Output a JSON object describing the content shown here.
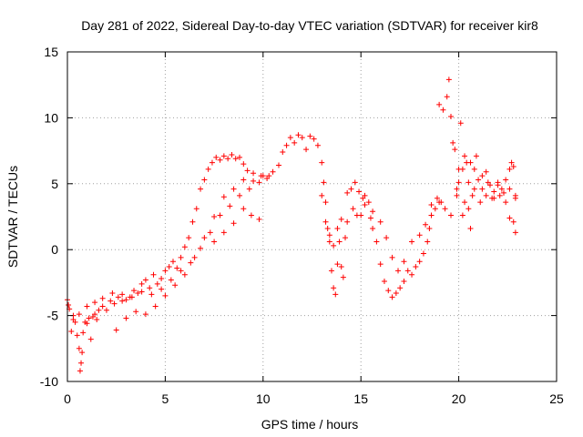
{
  "chart_data": {
    "type": "scatter",
    "title": "Day 281 of 2022, Sidereal Day-to-day VTEC variation (SDTVAR) for receiver kir8",
    "xlabel": "GPS time / hours",
    "ylabel": "SDTVAR / TECUs",
    "xlim": [
      0,
      25
    ],
    "ylim": [
      -10,
      15
    ],
    "xticks": [
      "0",
      "5",
      "10",
      "15",
      "20",
      "25"
    ],
    "yticks": [
      "-10",
      "-5",
      "0",
      "5",
      "10",
      "15"
    ],
    "grid": true,
    "marker": "plus",
    "color": "#ff0000",
    "series": [
      {
        "name": "SDTVAR",
        "points": [
          [
            0.0,
            -3.8
          ],
          [
            0.1,
            -4.5
          ],
          [
            0.2,
            -6.2
          ],
          [
            0.3,
            -5.0
          ],
          [
            0.4,
            -5.5
          ],
          [
            0.5,
            -6.5
          ],
          [
            0.6,
            -7.5
          ],
          [
            0.65,
            -9.2
          ],
          [
            0.7,
            -8.6
          ],
          [
            0.75,
            -7.8
          ],
          [
            0.8,
            -6.3
          ],
          [
            0.9,
            -5.5
          ],
          [
            1.0,
            -5.6
          ],
          [
            1.1,
            -5.2
          ],
          [
            1.2,
            -6.8
          ],
          [
            1.3,
            -5.1
          ],
          [
            1.4,
            -4.9
          ],
          [
            1.5,
            -5.3
          ],
          [
            1.6,
            -4.6
          ],
          [
            1.8,
            -4.3
          ],
          [
            2.0,
            -4.6
          ],
          [
            2.2,
            -3.9
          ],
          [
            2.4,
            -4.1
          ],
          [
            2.6,
            -3.6
          ],
          [
            2.8,
            -3.9
          ],
          [
            3.0,
            -3.8
          ],
          [
            3.2,
            -3.6
          ],
          [
            3.4,
            -3.1
          ],
          [
            3.6,
            -3.3
          ],
          [
            3.8,
            -2.6
          ],
          [
            4.0,
            -2.3
          ],
          [
            4.2,
            -2.9
          ],
          [
            4.4,
            -1.9
          ],
          [
            4.6,
            -2.6
          ],
          [
            4.8,
            -2.2
          ],
          [
            5.0,
            -1.6
          ],
          [
            5.2,
            -1.3
          ],
          [
            5.4,
            -0.9
          ],
          [
            5.6,
            -1.4
          ],
          [
            5.8,
            -0.6
          ],
          [
            6.0,
            0.2
          ],
          [
            6.2,
            0.9
          ],
          [
            6.4,
            2.1
          ],
          [
            6.6,
            3.1
          ],
          [
            6.8,
            4.6
          ],
          [
            7.0,
            5.3
          ],
          [
            7.2,
            6.1
          ],
          [
            7.4,
            6.6
          ],
          [
            7.6,
            7.0
          ],
          [
            7.8,
            6.8
          ],
          [
            8.0,
            7.1
          ],
          [
            8.2,
            6.9
          ],
          [
            8.4,
            7.2
          ],
          [
            8.6,
            6.9
          ],
          [
            8.8,
            7.0
          ],
          [
            9.0,
            6.5
          ],
          [
            9.2,
            6.0
          ],
          [
            0.05,
            -4.2
          ],
          [
            0.3,
            -5.3
          ],
          [
            0.6,
            -4.9
          ],
          [
            1.0,
            -4.3
          ],
          [
            1.4,
            -4.0
          ],
          [
            1.8,
            -3.7
          ],
          [
            2.3,
            -3.3
          ],
          [
            2.8,
            -3.4
          ],
          [
            3.3,
            -3.6
          ],
          [
            3.8,
            -3.2
          ],
          [
            4.3,
            -3.4
          ],
          [
            4.8,
            -3.0
          ],
          [
            5.3,
            -2.3
          ],
          [
            5.8,
            -1.6
          ],
          [
            6.3,
            -1.0
          ],
          [
            6.8,
            0.1
          ],
          [
            7.3,
            1.3
          ],
          [
            7.8,
            2.6
          ],
          [
            8.3,
            3.3
          ],
          [
            8.8,
            4.1
          ],
          [
            9.3,
            4.6
          ],
          [
            9.8,
            5.1
          ],
          [
            10.3,
            5.6
          ],
          [
            2.5,
            -6.1
          ],
          [
            3.0,
            -5.2
          ],
          [
            3.5,
            -4.7
          ],
          [
            4.0,
            -4.9
          ],
          [
            4.5,
            -4.3
          ],
          [
            5.0,
            -3.5
          ],
          [
            5.5,
            -2.7
          ],
          [
            6.0,
            -1.9
          ],
          [
            6.5,
            -0.6
          ],
          [
            7.0,
            0.9
          ],
          [
            7.5,
            2.5
          ],
          [
            8.0,
            4.0
          ],
          [
            8.5,
            4.6
          ],
          [
            9.0,
            5.3
          ],
          [
            9.5,
            5.8
          ],
          [
            10.0,
            5.6
          ],
          [
            7.5,
            0.6
          ],
          [
            8.0,
            1.3
          ],
          [
            8.5,
            2.0
          ],
          [
            9.0,
            3.1
          ],
          [
            9.4,
            2.6
          ],
          [
            9.8,
            2.3
          ],
          [
            9.5,
            5.2
          ],
          [
            9.9,
            5.6
          ],
          [
            10.2,
            5.4
          ],
          [
            10.5,
            5.9
          ],
          [
            10.8,
            6.4
          ],
          [
            11.0,
            7.4
          ],
          [
            11.2,
            7.9
          ],
          [
            11.4,
            8.5
          ],
          [
            11.6,
            8.1
          ],
          [
            11.8,
            8.7
          ],
          [
            12.0,
            8.5
          ],
          [
            12.2,
            7.6
          ],
          [
            12.4,
            8.6
          ],
          [
            12.6,
            8.4
          ],
          [
            12.8,
            7.9
          ],
          [
            13.0,
            6.6
          ],
          [
            13.1,
            5.1
          ],
          [
            13.2,
            3.6
          ],
          [
            13.3,
            1.6
          ],
          [
            13.4,
            0.6
          ],
          [
            13.5,
            -1.6
          ],
          [
            13.6,
            -2.9
          ],
          [
            13.7,
            -3.4
          ],
          [
            13.8,
            -1.1
          ],
          [
            13.9,
            0.6
          ],
          [
            14.0,
            -1.3
          ],
          [
            14.1,
            -2.1
          ],
          [
            14.2,
            0.9
          ],
          [
            14.3,
            4.3
          ],
          [
            14.5,
            4.6
          ],
          [
            14.7,
            5.1
          ],
          [
            14.9,
            4.4
          ],
          [
            15.0,
            2.6
          ],
          [
            15.1,
            3.9
          ],
          [
            15.2,
            4.1
          ],
          [
            15.4,
            3.6
          ],
          [
            15.5,
            2.4
          ],
          [
            15.6,
            1.6
          ],
          [
            15.8,
            0.6
          ],
          [
            16.0,
            -1.1
          ],
          [
            16.2,
            -2.4
          ],
          [
            16.4,
            -3.1
          ],
          [
            16.6,
            -3.6
          ],
          [
            16.8,
            -3.3
          ],
          [
            17.0,
            -2.9
          ],
          [
            17.2,
            -2.4
          ],
          [
            17.4,
            -1.6
          ],
          [
            17.6,
            -1.9
          ],
          [
            17.8,
            -1.3
          ],
          [
            18.0,
            -0.9
          ],
          [
            18.2,
            -0.3
          ],
          [
            18.4,
            0.6
          ],
          [
            18.5,
            1.6
          ],
          [
            18.6,
            2.6
          ],
          [
            18.8,
            3.1
          ],
          [
            19.0,
            3.6
          ],
          [
            13.0,
            4.1
          ],
          [
            13.2,
            2.1
          ],
          [
            13.4,
            1.1
          ],
          [
            13.6,
            0.3
          ],
          [
            13.8,
            1.6
          ],
          [
            14.0,
            2.3
          ],
          [
            14.3,
            2.1
          ],
          [
            14.6,
            3.1
          ],
          [
            14.8,
            2.6
          ],
          [
            15.2,
            3.4
          ],
          [
            15.6,
            2.9
          ],
          [
            16.0,
            2.1
          ],
          [
            16.3,
            0.9
          ],
          [
            16.6,
            -0.6
          ],
          [
            16.9,
            -1.6
          ],
          [
            17.2,
            -0.9
          ],
          [
            17.6,
            0.6
          ],
          [
            18.0,
            1.1
          ],
          [
            18.3,
            1.9
          ],
          [
            18.6,
            3.4
          ],
          [
            18.9,
            3.9
          ],
          [
            19.0,
            11.0
          ],
          [
            19.2,
            10.6
          ],
          [
            19.4,
            11.6
          ],
          [
            19.5,
            12.9
          ],
          [
            19.6,
            10.1
          ],
          [
            19.7,
            8.1
          ],
          [
            19.8,
            7.6
          ],
          [
            19.9,
            4.1
          ],
          [
            20.0,
            5.1
          ],
          [
            20.1,
            9.6
          ],
          [
            20.2,
            6.1
          ],
          [
            20.3,
            3.6
          ],
          [
            20.4,
            6.6
          ],
          [
            20.5,
            5.1
          ],
          [
            20.6,
            1.6
          ],
          [
            20.7,
            4.1
          ],
          [
            20.8,
            6.1
          ],
          [
            21.0,
            5.3
          ],
          [
            21.2,
            4.6
          ],
          [
            21.4,
            5.9
          ],
          [
            21.6,
            4.9
          ],
          [
            21.8,
            4.4
          ],
          [
            22.0,
            5.1
          ],
          [
            22.2,
            4.6
          ],
          [
            22.4,
            5.3
          ],
          [
            22.6,
            6.1
          ],
          [
            22.7,
            6.6
          ],
          [
            22.8,
            6.3
          ],
          [
            22.9,
            1.3
          ],
          [
            20.0,
            6.1
          ],
          [
            20.3,
            7.1
          ],
          [
            20.6,
            6.6
          ],
          [
            20.9,
            7.1
          ],
          [
            21.2,
            5.6
          ],
          [
            21.5,
            5.1
          ],
          [
            21.8,
            3.9
          ],
          [
            22.1,
            4.1
          ],
          [
            22.4,
            3.6
          ],
          [
            22.6,
            2.4
          ],
          [
            22.8,
            2.1
          ],
          [
            22.9,
            4.1
          ],
          [
            19.1,
            3.6
          ],
          [
            19.3,
            3.1
          ],
          [
            19.6,
            2.6
          ],
          [
            19.9,
            4.6
          ],
          [
            20.2,
            2.6
          ],
          [
            20.5,
            3.1
          ],
          [
            20.8,
            4.6
          ],
          [
            21.1,
            3.6
          ],
          [
            21.4,
            4.1
          ],
          [
            21.7,
            3.9
          ],
          [
            22.0,
            4.9
          ],
          [
            22.3,
            4.3
          ],
          [
            22.6,
            4.6
          ],
          [
            22.9,
            3.9
          ]
        ]
      }
    ]
  }
}
